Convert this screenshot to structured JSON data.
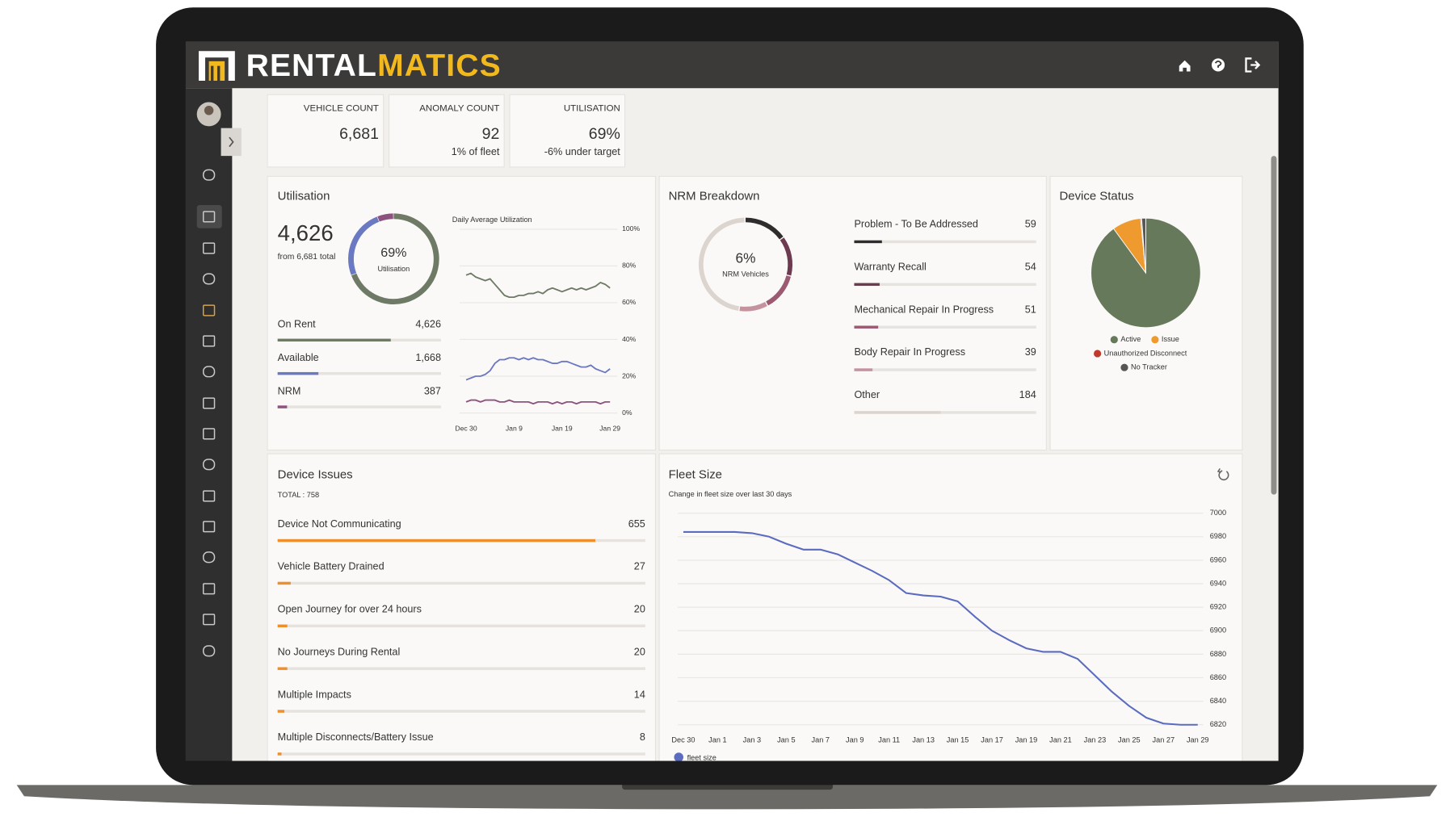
{
  "header": {
    "brand_left": "RENTAL",
    "brand_right": "MATICS"
  },
  "kpis": [
    {
      "label": "VEHICLE COUNT",
      "value": "6,681"
    },
    {
      "label": "ANOMALY COUNT",
      "value": "92",
      "note": "1% of fleet",
      "note_color": "#777777"
    },
    {
      "label": "UTILISATION",
      "value": "69%",
      "note": "-6% under target",
      "note_color": "#c8402a"
    }
  ],
  "utilisation": {
    "title": "Utilisation",
    "headline": "4,626",
    "total": {
      "value": 6681,
      "label": "from 6,681 total"
    },
    "donut": {
      "label": "69%",
      "caption": "Utilisation"
    },
    "rows": [
      {
        "label": "On Rent",
        "value": 4626,
        "value_label": "4,626",
        "color": "#6f7a66"
      },
      {
        "label": "Available",
        "value": 1668,
        "value_label": "1,668",
        "color": "#6b78c2"
      },
      {
        "label": "NRM",
        "value": 387,
        "color": "#8e527f"
      }
    ],
    "chart": {
      "type": "line",
      "title": "Daily Average Utilization",
      "categories": [
        "Dec 30",
        null,
        null,
        null,
        null,
        null,
        null,
        null,
        null,
        null,
        "Jan 9",
        null,
        null,
        null,
        null,
        null,
        null,
        null,
        null,
        null,
        "Jan 19",
        null,
        null,
        null,
        null,
        null,
        null,
        null,
        null,
        null,
        "Jan 29"
      ],
      "series": [
        {
          "color": "#6f7a66",
          "values": [
            75,
            76,
            74,
            73,
            72,
            73,
            70,
            67,
            64,
            63,
            63,
            64,
            64,
            65,
            65,
            66,
            65,
            67,
            68,
            67,
            66,
            67,
            68,
            67,
            68,
            67,
            68,
            69,
            71,
            70,
            68
          ]
        },
        {
          "color": "#6b78c2",
          "values": [
            18,
            19,
            20,
            20,
            21,
            23,
            27,
            29,
            29,
            30,
            30,
            29,
            30,
            29,
            30,
            29,
            29,
            28,
            27,
            27,
            28,
            28,
            27,
            26,
            25,
            25,
            26,
            24,
            23,
            22,
            24
          ]
        },
        {
          "color": "#8e527f",
          "values": [
            6,
            7,
            7,
            6,
            7,
            7,
            7,
            6,
            6,
            7,
            6,
            6,
            6,
            6,
            5,
            6,
            6,
            6,
            5,
            6,
            5,
            6,
            6,
            5,
            6,
            6,
            6,
            6,
            5,
            6,
            6
          ]
        }
      ],
      "ylim": [
        0,
        100
      ],
      "yticks": [
        {
          "value": 0,
          "label": "0%"
        },
        {
          "value": 20,
          "label": "20%"
        },
        {
          "value": 40,
          "label": "40%"
        },
        {
          "value": 60,
          "label": "60%"
        },
        {
          "value": 80,
          "label": "80%"
        },
        {
          "value": 100,
          "label": "100%"
        }
      ]
    }
  },
  "nrm": {
    "title": "NRM Breakdown",
    "donut": {
      "label": "6%",
      "caption": "NRM Vehicles"
    },
    "items": [
      {
        "label": "Problem - To Be Addressed",
        "value": 59,
        "color": "#2f2c2d"
      },
      {
        "label": "Warranty Recall",
        "value": 54,
        "color": "#6e3a4f"
      },
      {
        "label": "Mechanical Repair In Progress",
        "value": 51,
        "color": "#9b5a72"
      },
      {
        "label": "Body Repair In Progress",
        "value": 39,
        "color": "#c4939e"
      },
      {
        "label": "Other",
        "value": 184,
        "color": "#dcd4ce"
      }
    ]
  },
  "device_status": {
    "title": "Device Status",
    "type": "pie",
    "series": [
      {
        "name": "Active",
        "color": "#66795a",
        "value": 90
      },
      {
        "name": "Issue",
        "color": "#ef9a2e",
        "value": 8.5
      },
      {
        "name": "Unauthorized Disconnect",
        "color": "#c0392b",
        "value": 0.3
      },
      {
        "name": "No Tracker",
        "color": "#555555",
        "value": 1.2
      }
    ]
  },
  "device_issues": {
    "title": "Device Issues",
    "total": {
      "value": 758,
      "label": "TOTAL : 758"
    },
    "color": "#ef8f2b",
    "items": [
      {
        "label": "Device Not Communicating",
        "value": 655
      },
      {
        "label": "Vehicle Battery Drained",
        "value": 27
      },
      {
        "label": "Open Journey for over 24 hours",
        "value": 20
      },
      {
        "label": "No Journeys During Rental",
        "value": 20
      },
      {
        "label": "Multiple Impacts",
        "value": 14
      },
      {
        "label": "Multiple Disconnects/Battery Issue",
        "value": 8
      }
    ]
  },
  "fleet_size": {
    "title": "Fleet Size",
    "subtitle": "Change in fleet size over last 30 days",
    "chart": {
      "type": "line",
      "categories": [
        "Dec 30",
        null,
        "Jan 1",
        null,
        "Jan 3",
        null,
        "Jan 5",
        null,
        "Jan 7",
        null,
        "Jan 9",
        null,
        "Jan 11",
        null,
        "Jan 13",
        null,
        "Jan 15",
        null,
        "Jan 17",
        null,
        "Jan 19",
        null,
        "Jan 21",
        null,
        "Jan 23",
        null,
        "Jan 25",
        null,
        "Jan 27",
        null,
        "Jan 29"
      ],
      "series": [
        {
          "name": "fleet size",
          "color": "#5a6bc0",
          "values": [
            6984,
            6984,
            6984,
            6984,
            6983,
            6980,
            6974,
            6969,
            6969,
            6965,
            6958,
            6951,
            6943,
            6932,
            6930,
            6929,
            6925,
            6912,
            6900,
            6892,
            6885,
            6882,
            6882,
            6876,
            6862,
            6848,
            6836,
            6826,
            6821,
            6820,
            6820
          ]
        }
      ],
      "ylim": [
        6820,
        7000
      ],
      "yticks": [
        6820,
        6840,
        6860,
        6880,
        6900,
        6920,
        6940,
        6960,
        6980,
        7000
      ]
    }
  }
}
